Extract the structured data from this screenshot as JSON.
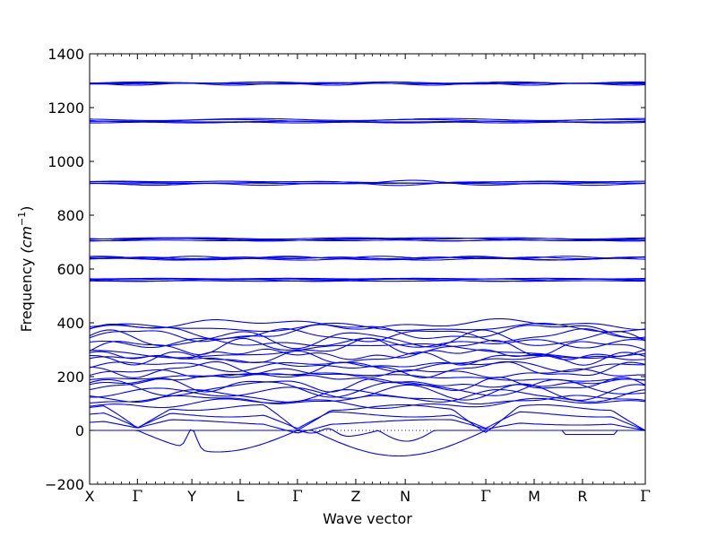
{
  "chart_data": {
    "type": "line",
    "title": "",
    "xlabel": "Wave vector",
    "ylabel_main": "Frequency ",
    "ylabel_unit_base": "(cm",
    "ylabel_unit_exp": "−1",
    "ylabel_unit_close": ")",
    "ylim": [
      -200,
      1400
    ],
    "yticks": [
      "−200",
      "0",
      "200",
      "400",
      "600",
      "800",
      "1000",
      "1200",
      "1400"
    ],
    "ytick_values": [
      -200,
      0,
      200,
      400,
      600,
      800,
      1000,
      1200,
      1400
    ],
    "zero_line": true,
    "line_color": "#0000ff",
    "grid": false,
    "high_symmetry_points": [
      {
        "label": "X",
        "pos": 0.0
      },
      {
        "label": "Γ",
        "pos": 0.086
      },
      {
        "label": "Y",
        "pos": 0.184
      },
      {
        "label": "L",
        "pos": 0.271
      },
      {
        "label": "Γ",
        "pos": 0.374
      },
      {
        "label": "Z",
        "pos": 0.479
      },
      {
        "label": "N",
        "pos": 0.568
      },
      {
        "label": "Γ",
        "pos": 0.713
      },
      {
        "label": "M",
        "pos": 0.8
      },
      {
        "label": "R",
        "pos": 0.887
      },
      {
        "label": "Γ",
        "pos": 1.0
      }
    ],
    "flat_band_groups": [
      {
        "center": 1290,
        "count": 4,
        "spread": 8
      },
      {
        "center": 1150,
        "count": 4,
        "spread": 15
      },
      {
        "center": 920,
        "count": 4,
        "spread": 14
      },
      {
        "center": 710,
        "count": 4,
        "spread": 10
      },
      {
        "center": 640,
        "count": 4,
        "spread": 10
      },
      {
        "center": 560,
        "count": 4,
        "spread": 12
      }
    ],
    "mid_band_range": [
      100,
      395
    ],
    "mid_band_count": 22,
    "acoustic_min": -95
  }
}
